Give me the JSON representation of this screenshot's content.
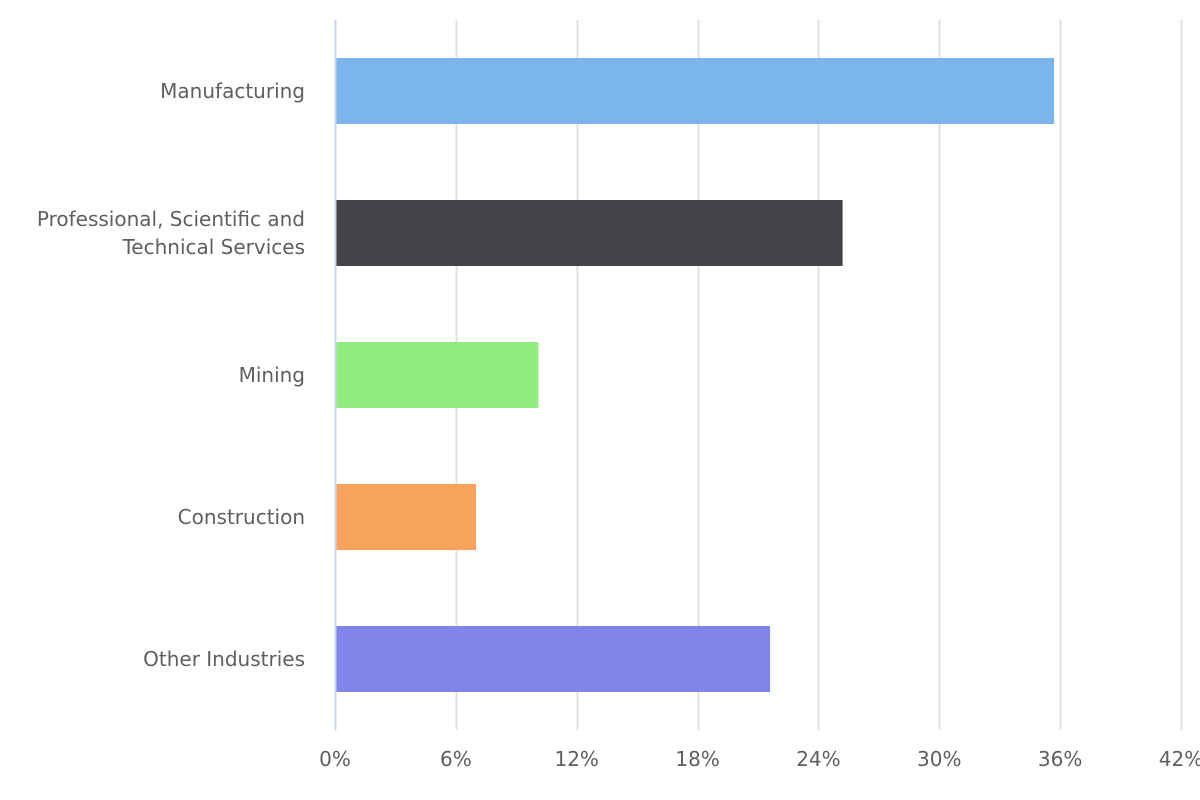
{
  "chart_data": {
    "type": "bar",
    "orientation": "horizontal",
    "categories": [
      [
        "Manufacturing"
      ],
      [
        "Professional, Scientific and",
        "Technical Services"
      ],
      [
        "Mining"
      ],
      [
        "Construction"
      ],
      [
        "Other Industries"
      ]
    ],
    "values": [
      35.7,
      25.2,
      10.1,
      7.0,
      21.6
    ],
    "colors": [
      "#7cb5ec",
      "#434348",
      "#90ed7d",
      "#f7a35c",
      "#8085e9"
    ],
    "xlim": [
      0,
      42
    ],
    "xticks": [
      0,
      6,
      12,
      18,
      24,
      30,
      36,
      42
    ],
    "xtick_labels": [
      "0%",
      "6%",
      "12%",
      "18%",
      "24%",
      "30%",
      "36%",
      "42%"
    ],
    "grid": true,
    "title": "",
    "xlabel": "",
    "ylabel": ""
  },
  "style": {
    "grid_color": "#e0e0e0",
    "axis_color": "#c8d5f0",
    "text_color": "#5f5f5f"
  }
}
